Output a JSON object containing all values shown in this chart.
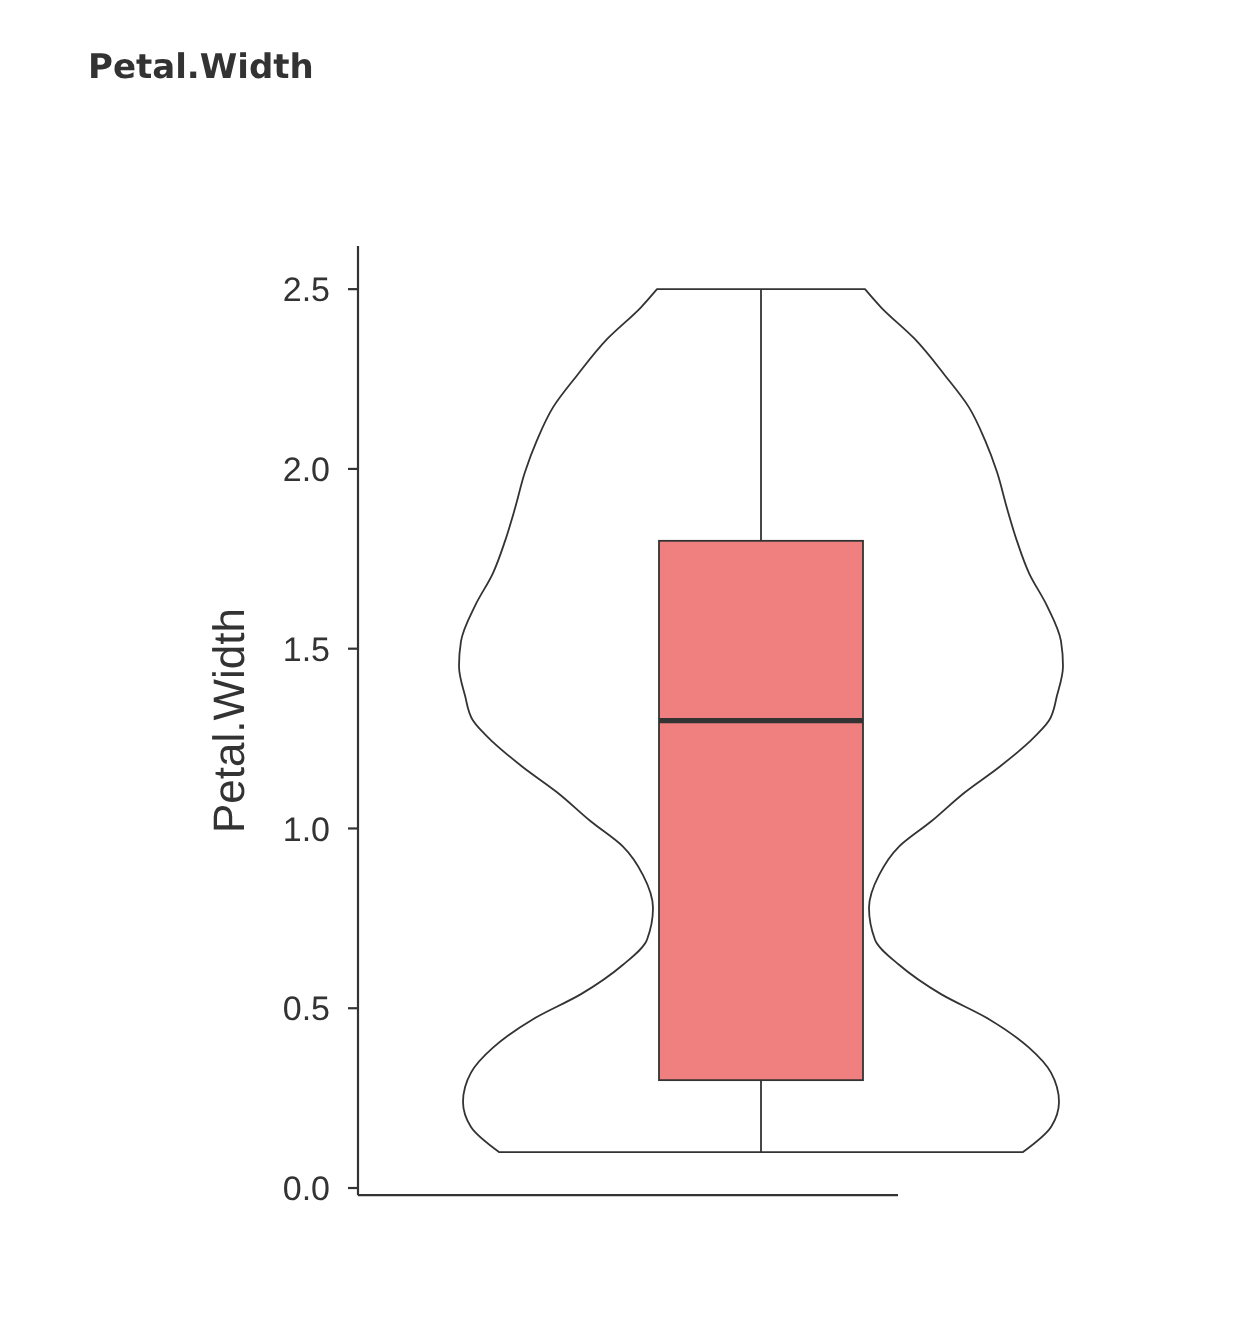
{
  "chart_data": {
    "type": "box",
    "title": "Petal.Width",
    "ylabel": "Petal.Width",
    "categories": [
      null
    ],
    "color": "#f08080",
    "boxes": [
      {
        "low": 0.1,
        "q1": 0.3,
        "median": 1.3,
        "q3": 1.8,
        "high": 2.5
      }
    ],
    "ylim": [
      -0.02,
      2.62
    ],
    "yticks": [
      {
        "value": 0,
        "label": "0.0"
      },
      0.5,
      {
        "value": 1,
        "label": "1.0"
      },
      1.5,
      {
        "value": 2,
        "label": "2.0"
      },
      2.5
    ]
  }
}
